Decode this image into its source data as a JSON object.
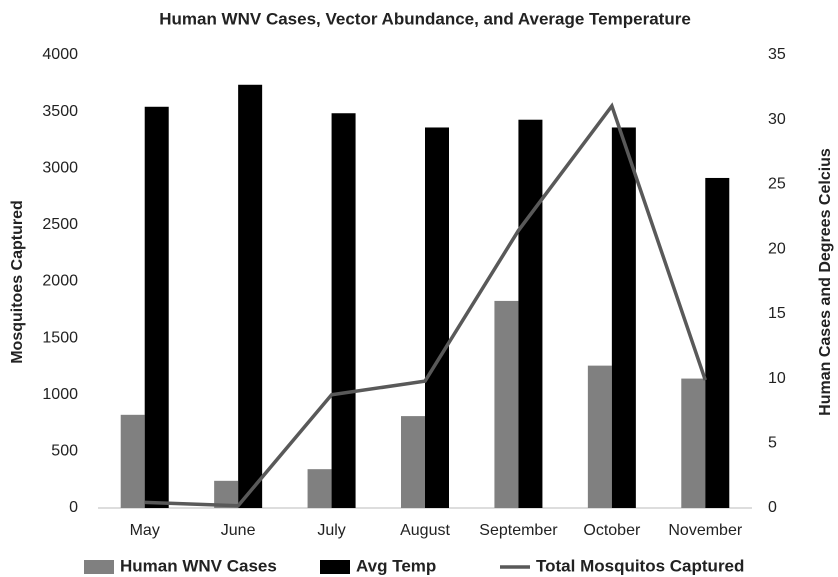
{
  "chart_data": {
    "type": "bar",
    "title": "Human WNV Cases, Vector Abundance, and Average Temperature",
    "ylabel": "Mosquitoes Captured",
    "y2label": "Human Cases and Degrees Celcius",
    "categories": [
      "May",
      "June",
      "July",
      "August",
      "September",
      "October",
      "November"
    ],
    "series": [
      {
        "name": "Human WNV Cases",
        "type": "bar",
        "axis": "y2",
        "color": "#808080",
        "values": [
          7.2,
          2.1,
          3,
          7.1,
          16,
          11,
          10
        ]
      },
      {
        "name": "Avg Temp",
        "type": "bar",
        "axis": "y2",
        "color": "#000000",
        "values": [
          31,
          32.7,
          30.5,
          29.4,
          30,
          29.4,
          25.5
        ]
      },
      {
        "name": "Total Mosquitos Captured",
        "type": "line",
        "axis": "y",
        "color": "#595959",
        "values": [
          50,
          20,
          1000,
          1120,
          2450,
          3550,
          1130
        ]
      }
    ],
    "ylim": [
      0,
      4000
    ],
    "yticks": [
      0,
      500,
      1000,
      1500,
      2000,
      2500,
      3000,
      3500,
      4000
    ],
    "y2lim": [
      0,
      35
    ],
    "y2ticks": [
      0,
      5,
      10,
      15,
      20,
      25,
      30,
      35
    ],
    "legend": "bottom"
  }
}
